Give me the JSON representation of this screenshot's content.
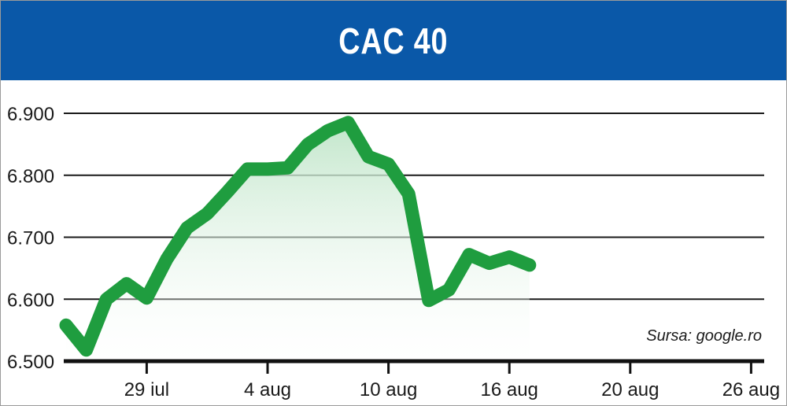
{
  "title": "CAC 40",
  "source": "Sursa: google.ro",
  "colors": {
    "header": "#0a58a8",
    "line": "#1f9d3f",
    "area_top": "#bfe5c8",
    "grid": "#1a1a1a"
  },
  "chart_data": {
    "type": "line",
    "title": "CAC 40",
    "xlabel": "",
    "ylabel": "",
    "ylim": [
      6500,
      6900
    ],
    "y_ticks": [
      6500,
      6600,
      6700,
      6800,
      6900
    ],
    "y_tick_labels": [
      "6.500",
      "6.600",
      "6.700",
      "6.800",
      "6.900"
    ],
    "x_tick_labels": [
      "29 iul",
      "4 aug",
      "10 aug",
      "16 aug",
      "20 aug",
      "26 aug"
    ],
    "x_tick_index": [
      4,
      10,
      16,
      22,
      28,
      34
    ],
    "grid": true,
    "fill_under_line": true,
    "values": [
      6558,
      6518,
      6600,
      6625,
      6602,
      6665,
      6715,
      6738,
      6773,
      6810,
      6810,
      6812,
      6850,
      6872,
      6885,
      6830,
      6818,
      6770,
      6598,
      6615,
      6672,
      6658,
      6668,
      6655
    ]
  }
}
